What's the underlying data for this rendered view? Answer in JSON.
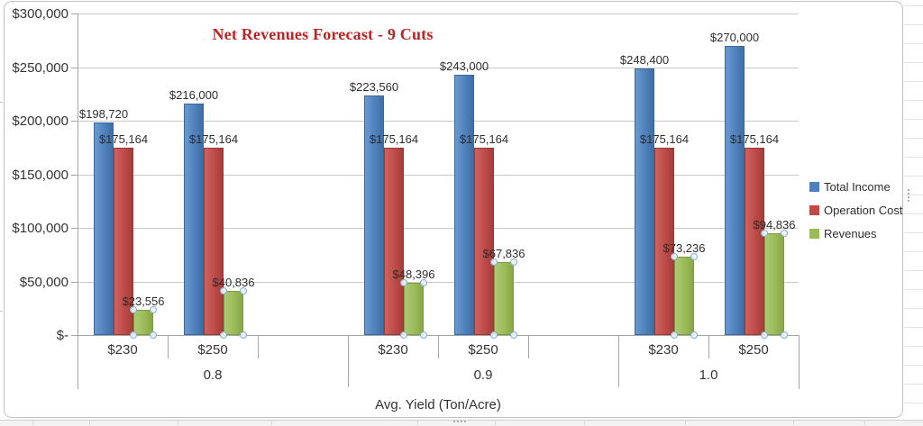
{
  "chart_data": {
    "type": "bar",
    "title": "Net Revenues Forecast - 9 Cuts",
    "title_color": "#C32222",
    "x_axis_title": "Avg. Yield (Ton/Acre)",
    "grid": true,
    "legend_position": "right",
    "y_axis": {
      "range": [
        0,
        300000
      ],
      "ticks": [
        {
          "value": 300000,
          "label": "$300,000"
        },
        {
          "value": 250000,
          "label": "$250,000"
        },
        {
          "value": 200000,
          "label": "$200,000"
        },
        {
          "value": 150000,
          "label": "$150,000"
        },
        {
          "value": 100000,
          "label": "$100,000"
        },
        {
          "value": 50000,
          "label": "$50,000"
        },
        {
          "value": 0,
          "label": "$-"
        }
      ]
    },
    "x_groups": [
      {
        "label": "0.8",
        "categories": [
          "$230",
          "$250"
        ]
      },
      {
        "label": "0.9",
        "categories": [
          "$230",
          "$250"
        ]
      },
      {
        "label": "1.0",
        "categories": [
          "$230",
          "$250"
        ]
      }
    ],
    "series": [
      {
        "name": "Total Income",
        "color": "#4F81BD",
        "color_light": "#6B9ACE",
        "color_dark": "#3F6EA3",
        "border_color": "#3A689C",
        "selected": false,
        "values": [
          198720,
          216000,
          223560,
          243000,
          248400,
          270000
        ],
        "data_labels": [
          "$198,720",
          "$216,000",
          "$223,560",
          "$243,000",
          "$248,400",
          "$270,000"
        ]
      },
      {
        "name": "Operation Cost",
        "color": "#BE4B48",
        "color_light": "#CD6360",
        "color_dark": "#A23E3B",
        "border_color": "#9B3936",
        "selected": false,
        "values": [
          175164,
          175164,
          175164,
          175164,
          175164,
          175164
        ],
        "data_labels": [
          "$175,164",
          "$175,164",
          "$175,164",
          "$175,164",
          "$175,164",
          "$175,164"
        ]
      },
      {
        "name": "Revenues",
        "color": "#9BBB59",
        "color_light": "#ADC975",
        "color_dark": "#87A64A",
        "border_color": "#7E9D3F",
        "selected": true,
        "values": [
          23556,
          40836,
          48396,
          67836,
          73236,
          94836
        ],
        "data_labels": [
          "$23,556",
          "$40,836",
          "$48,396",
          "$67,836",
          "$73,236",
          "$94,836"
        ]
      }
    ],
    "selection_handle_color": "#85AECF"
  }
}
